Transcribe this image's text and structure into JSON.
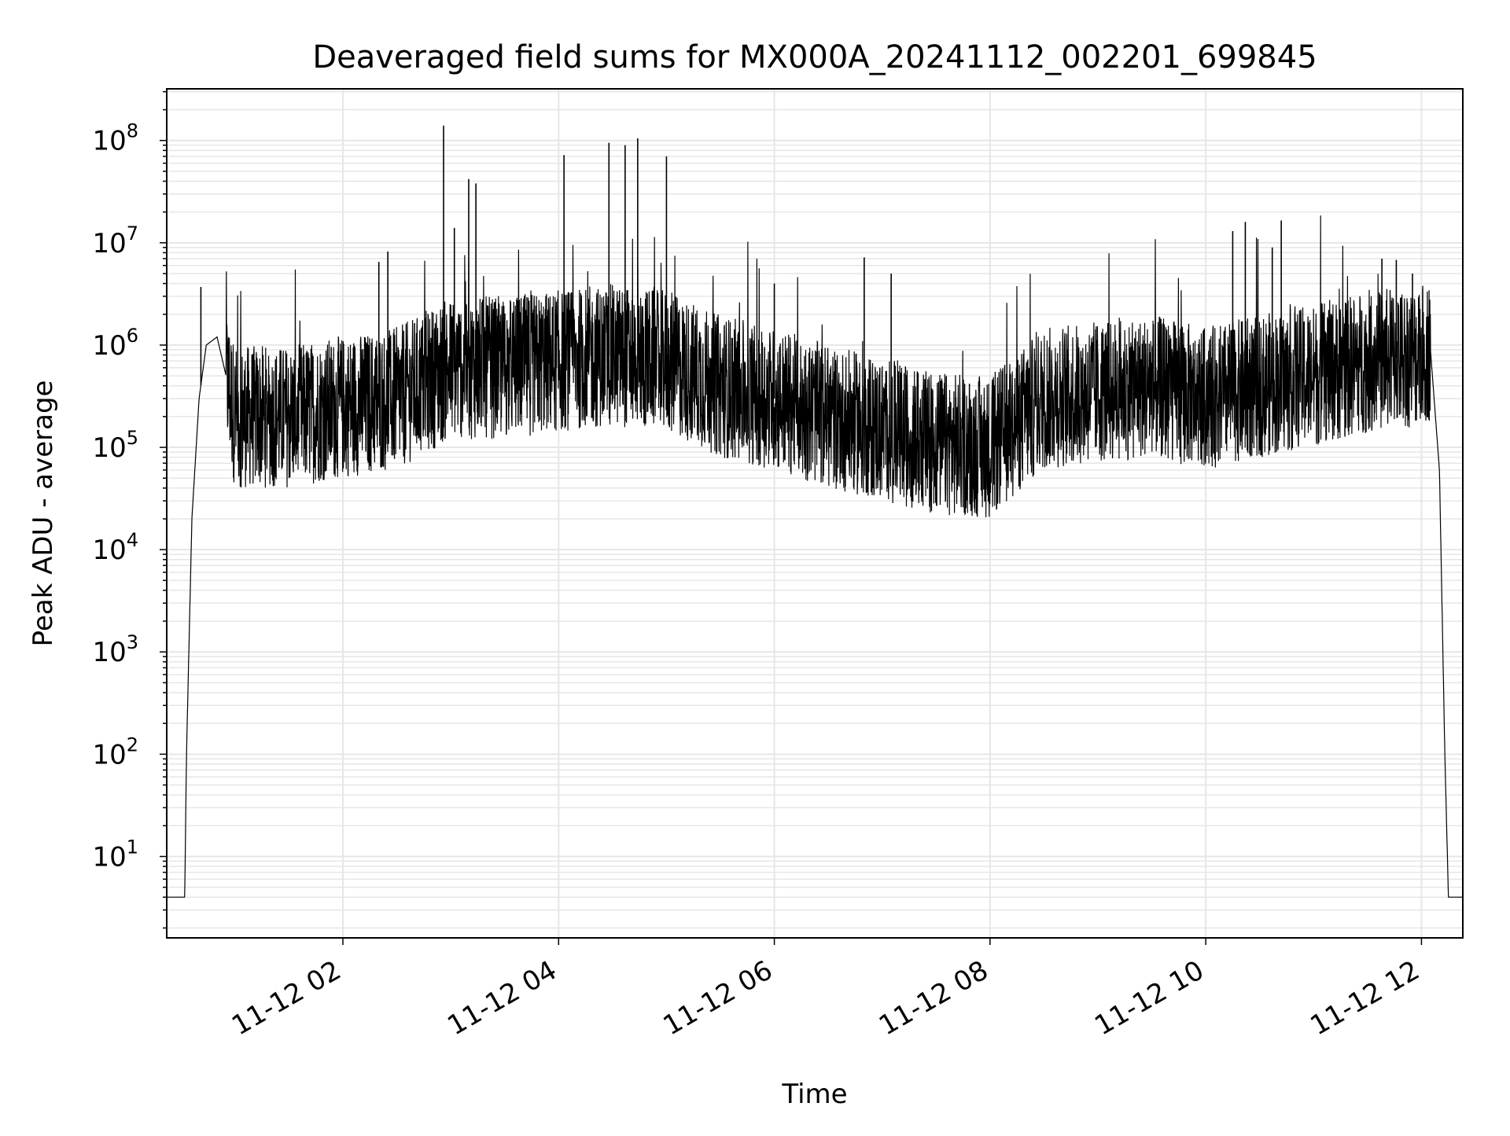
{
  "chart_data": {
    "type": "line",
    "title": "Deaveraged field sums for MX000A_20241112_002201_699845",
    "xlabel": "Time",
    "ylabel": "Peak ADU - average",
    "yscale": "log",
    "ylim": [
      1.6,
      320000000.0
    ],
    "xlim": [
      "2024-11-12 00:22",
      "2024-11-12 12:23"
    ],
    "x_ticks": [
      "11-12 02",
      "11-12 04",
      "11-12 06",
      "11-12 08",
      "11-12 10",
      "11-12 12"
    ],
    "y_ticks": [
      {
        "base": "10",
        "exp": "1"
      },
      {
        "base": "10",
        "exp": "2"
      },
      {
        "base": "10",
        "exp": "3"
      },
      {
        "base": "10",
        "exp": "4"
      },
      {
        "base": "10",
        "exp": "5"
      },
      {
        "base": "10",
        "exp": "6"
      },
      {
        "base": "10",
        "exp": "7"
      },
      {
        "base": "10",
        "exp": "8"
      }
    ],
    "grid": true,
    "line_color": "#000000",
    "grid_color": "#e6e6e6",
    "series": [
      {
        "points": [
          [
            "2024-11-12 00:22",
            4
          ],
          [
            "2024-11-12 00:32",
            4
          ],
          [
            "2024-11-12 00:33",
            100
          ],
          [
            "2024-11-12 00:36",
            20000
          ],
          [
            "2024-11-12 00:40",
            300000
          ],
          [
            "2024-11-12 00:44",
            1000000
          ],
          [
            "2024-11-12 00:50",
            1200000
          ],
          [
            "2024-11-12 00:55",
            500000
          ],
          [
            "2024-11-12 01:00",
            200000
          ],
          [
            "2024-11-12 01:30",
            200000
          ],
          [
            "2024-11-12 02:00",
            250000
          ],
          [
            "2024-11-12 02:30",
            300000
          ],
          [
            "2024-11-12 03:00",
            600000
          ],
          [
            "2024-11-12 03:30",
            600000
          ],
          [
            "2024-11-12 04:00",
            700000
          ],
          [
            "2024-11-12 04:30",
            800000
          ],
          [
            "2024-11-12 05:00",
            700000
          ],
          [
            "2024-11-12 05:30",
            400000
          ],
          [
            "2024-11-12 06:00",
            300000
          ],
          [
            "2024-11-12 06:30",
            200000
          ],
          [
            "2024-11-12 07:00",
            150000
          ],
          [
            "2024-11-12 07:30",
            110000
          ],
          [
            "2024-11-12 08:00",
            100000
          ],
          [
            "2024-11-12 08:30",
            300000
          ],
          [
            "2024-11-12 09:00",
            350000
          ],
          [
            "2024-11-12 09:30",
            400000
          ],
          [
            "2024-11-12 10:00",
            300000
          ],
          [
            "2024-11-12 10:30",
            400000
          ],
          [
            "2024-11-12 11:00",
            500000
          ],
          [
            "2024-11-12 11:30",
            700000
          ],
          [
            "2024-11-12 12:00",
            800000
          ],
          [
            "2024-11-12 12:05",
            900000
          ],
          [
            "2024-11-12 12:10",
            60000
          ],
          [
            "2024-11-12 12:13",
            100
          ],
          [
            "2024-11-12 12:15",
            4
          ],
          [
            "2024-11-12 12:23",
            4
          ]
        ]
      }
    ],
    "spikes": [
      [
        "2024-11-12 00:41",
        3700000
      ],
      [
        "2024-11-12 02:20",
        6500000
      ],
      [
        "2024-11-12 02:25",
        8200000
      ],
      [
        "2024-11-12 02:56",
        140000000
      ],
      [
        "2024-11-12 03:02",
        14000000
      ],
      [
        "2024-11-12 03:10",
        42000000
      ],
      [
        "2024-11-12 03:14",
        38000000
      ],
      [
        "2024-11-12 04:03",
        72000000
      ],
      [
        "2024-11-12 04:28",
        95000000
      ],
      [
        "2024-11-12 04:37",
        90000000
      ],
      [
        "2024-11-12 04:44",
        105000000
      ],
      [
        "2024-11-12 05:00",
        70000000
      ],
      [
        "2024-11-12 06:00",
        4000000
      ],
      [
        "2024-11-12 06:50",
        7200000
      ],
      [
        "2024-11-12 07:05",
        5000000
      ],
      [
        "2024-11-12 10:15",
        13000000
      ],
      [
        "2024-11-12 10:22",
        16000000
      ],
      [
        "2024-11-12 10:37",
        9000000
      ],
      [
        "2024-11-12 10:42",
        16500000
      ],
      [
        "2024-11-12 11:38",
        7000000
      ],
      [
        "2024-11-12 11:46",
        6800000
      ],
      [
        "2024-11-12 11:55",
        5000000
      ]
    ]
  }
}
